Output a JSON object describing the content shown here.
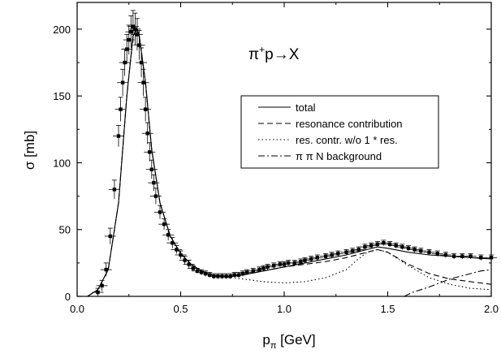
{
  "chart_data": {
    "type": "line",
    "title": "π⁺p→X",
    "annotation": {
      "base": "π",
      "sup": "+",
      "rest": "p→X"
    },
    "xlabel": {
      "base": "p",
      "sub": "π",
      "rest": " [GeV]"
    },
    "ylabel": "σ [mb]",
    "xlim": [
      0,
      2.0
    ],
    "ylim": [
      0,
      220
    ],
    "xticks": [
      0.0,
      0.5,
      1.0,
      1.5,
      2.0
    ],
    "xtick_labels": [
      "0.0",
      "0.5",
      "1.0",
      "1.5",
      "2.0"
    ],
    "yticks": [
      0,
      50,
      100,
      150,
      200
    ],
    "ytick_labels": [
      "0",
      "50",
      "100",
      "150",
      "200"
    ],
    "grid": false,
    "legend_position": "center-right",
    "series": [
      {
        "name": "total",
        "style": "solid",
        "x": [
          0.05,
          0.1,
          0.15,
          0.2,
          0.24,
          0.27,
          0.29,
          0.3,
          0.33,
          0.36,
          0.4,
          0.45,
          0.5,
          0.55,
          0.6,
          0.65,
          0.7,
          0.75,
          0.8,
          0.9,
          1.0,
          1.1,
          1.2,
          1.3,
          1.4,
          1.45,
          1.5,
          1.6,
          1.7,
          1.8,
          1.9,
          2.0
        ],
        "y": [
          0,
          5,
          20,
          70,
          150,
          195,
          200,
          195,
          160,
          110,
          70,
          45,
          32,
          24,
          19,
          16,
          15,
          15,
          16,
          19,
          22,
          25,
          28,
          31,
          35,
          37,
          36,
          33,
          31,
          30,
          29,
          28
        ]
      },
      {
        "name": "resonance contribution",
        "style": "dashed",
        "x": [
          0.05,
          0.1,
          0.15,
          0.2,
          0.24,
          0.27,
          0.29,
          0.3,
          0.33,
          0.36,
          0.4,
          0.45,
          0.5,
          0.55,
          0.6,
          0.65,
          0.7,
          0.75,
          0.8,
          0.9,
          1.0,
          1.1,
          1.2,
          1.3,
          1.4,
          1.45,
          1.5,
          1.6,
          1.7,
          1.8,
          1.9,
          2.0
        ],
        "y": [
          0,
          5,
          20,
          70,
          150,
          195,
          200,
          195,
          160,
          110,
          70,
          45,
          32,
          24,
          19,
          16,
          15,
          15,
          16,
          19,
          22,
          24,
          26,
          29,
          33,
          35,
          33,
          24,
          17,
          13,
          11,
          9
        ]
      },
      {
        "name": "res. contr. w/o 1 * res.",
        "style": "dotted",
        "x": [
          0.05,
          0.1,
          0.15,
          0.2,
          0.24,
          0.27,
          0.29,
          0.3,
          0.33,
          0.36,
          0.4,
          0.45,
          0.5,
          0.55,
          0.6,
          0.65,
          0.7,
          0.75,
          0.8,
          0.9,
          1.0,
          1.1,
          1.2,
          1.3,
          1.35,
          1.4,
          1.45,
          1.5,
          1.6,
          1.7,
          1.8,
          1.9,
          2.0
        ],
        "y": [
          0,
          5,
          20,
          70,
          150,
          195,
          200,
          195,
          160,
          110,
          70,
          45,
          32,
          24,
          19,
          16,
          15,
          14,
          13,
          11,
          10,
          11,
          14,
          20,
          27,
          33,
          35,
          33,
          23,
          14,
          9,
          6,
          5
        ]
      },
      {
        "name": "π π N background",
        "style": "dashdot",
        "x": [
          1.58,
          1.62,
          1.66,
          1.7,
          1.75,
          1.8,
          1.85,
          1.9,
          1.95,
          2.0
        ],
        "y": [
          0,
          3,
          5,
          7,
          10,
          13,
          15,
          17,
          19,
          20
        ]
      }
    ],
    "data_points": {
      "name": "data",
      "x": [
        0.1,
        0.12,
        0.14,
        0.16,
        0.18,
        0.2,
        0.21,
        0.22,
        0.23,
        0.24,
        0.25,
        0.26,
        0.27,
        0.28,
        0.29,
        0.3,
        0.31,
        0.32,
        0.33,
        0.34,
        0.35,
        0.36,
        0.37,
        0.38,
        0.4,
        0.42,
        0.44,
        0.46,
        0.48,
        0.5,
        0.52,
        0.54,
        0.56,
        0.58,
        0.6,
        0.62,
        0.64,
        0.66,
        0.68,
        0.7,
        0.72,
        0.74,
        0.76,
        0.78,
        0.8,
        0.82,
        0.85,
        0.88,
        0.9,
        0.92,
        0.95,
        0.98,
        1.0,
        1.02,
        1.05,
        1.08,
        1.1,
        1.13,
        1.16,
        1.2,
        1.23,
        1.26,
        1.3,
        1.33,
        1.36,
        1.39,
        1.42,
        1.45,
        1.48,
        1.51,
        1.54,
        1.57,
        1.6,
        1.63,
        1.66,
        1.7,
        1.74,
        1.78,
        1.82,
        1.86,
        1.9,
        1.95,
        2.0
      ],
      "y": [
        3,
        8,
        20,
        45,
        80,
        120,
        140,
        160,
        175,
        185,
        192,
        198,
        202,
        200,
        196,
        188,
        175,
        160,
        140,
        122,
        108,
        95,
        85,
        75,
        63,
        54,
        46,
        40,
        35,
        31,
        27,
        24,
        21,
        19,
        18,
        17,
        16,
        15,
        15,
        15,
        15,
        15,
        16,
        16,
        17,
        18,
        19,
        20,
        21,
        22,
        23,
        24,
        24,
        25,
        25,
        26,
        27,
        28,
        29,
        30,
        31,
        32,
        33,
        34,
        35,
        37,
        38,
        39,
        40,
        39,
        38,
        37,
        36,
        35,
        34,
        33,
        32,
        31,
        30,
        30,
        30,
        29,
        29
      ],
      "err": [
        3,
        4,
        5,
        6,
        7,
        8,
        9,
        10,
        10,
        11,
        11,
        12,
        12,
        12,
        12,
        11,
        11,
        10,
        9,
        8,
        7,
        7,
        6,
        6,
        5,
        4,
        4,
        4,
        3,
        3,
        3,
        3,
        2,
        2,
        2,
        2,
        2,
        2,
        2,
        2,
        2,
        2,
        2,
        2,
        2,
        2,
        2,
        2,
        2,
        2,
        2,
        2,
        2,
        2,
        2,
        2,
        2,
        2,
        2,
        2,
        2,
        2,
        2,
        2,
        2,
        2,
        2,
        2,
        2,
        2,
        2,
        2,
        2,
        2,
        2,
        2,
        2,
        2,
        2,
        2,
        2,
        2,
        2
      ]
    }
  }
}
